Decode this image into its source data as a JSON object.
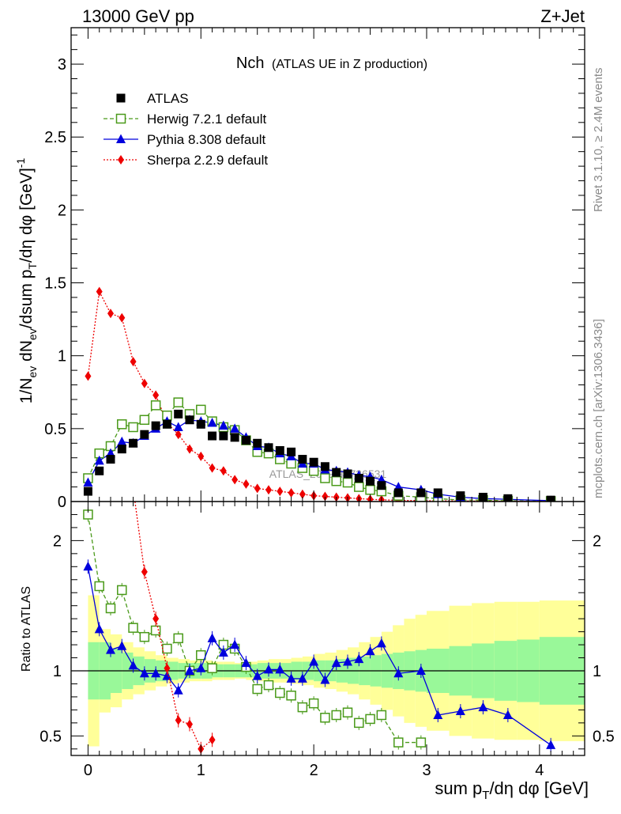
{
  "chart_data": {
    "type": "line",
    "header_left": "13000 GeV pp",
    "header_right": "Z+Jet",
    "title_main": "Nch",
    "title_sub": "(ATLAS UE in Z production)",
    "ylabel": "1/N_ev dN_ev/dsum p_T/dη dφ [GeV]^-1",
    "xlabel": "sum p_T/dη dφ [GeV]",
    "ratio_ylabel": "Ratio to ATLAS",
    "side_label_top": "Rivet 3.1.10, ≥ 2.4M events",
    "side_label_bottom": "mcplots.cern.ch [arXiv:1306.3436]",
    "watermark": "ATLAS_2019_I1736531",
    "xlim": [
      -0.15,
      4.4
    ],
    "ylim_main": [
      0,
      3.25
    ],
    "ylim_ratio": [
      0.35,
      2.3
    ],
    "xticks": [
      0,
      1,
      2,
      3,
      4
    ],
    "yticks_main": [
      0,
      0.5,
      1,
      1.5,
      2,
      2.5,
      3
    ],
    "yticks_ratio": [
      0.5,
      1,
      2
    ],
    "legend": [
      {
        "key": "atlas",
        "label": "ATLAS"
      },
      {
        "key": "herwig",
        "label": "Herwig 7.2.1 default"
      },
      {
        "key": "pythia",
        "label": "Pythia 8.308 default"
      },
      {
        "key": "sherpa",
        "label": "Sherpa 2.2.9 default"
      }
    ],
    "colors": {
      "atlas": "#000000",
      "herwig": "#4a9a1a",
      "pythia": "#0000dd",
      "sherpa": "#ee0000",
      "band_inner": "#99f899",
      "band_outer": "#ffff99"
    },
    "x": [
      0.0,
      0.1,
      0.2,
      0.3,
      0.4,
      0.5,
      0.6,
      0.7,
      0.8,
      0.9,
      1.0,
      1.1,
      1.2,
      1.3,
      1.4,
      1.5,
      1.6,
      1.7,
      1.8,
      1.9,
      2.0,
      2.1,
      2.2,
      2.3,
      2.4,
      2.5,
      2.6,
      2.75,
      2.95,
      3.1,
      3.3,
      3.5,
      3.72,
      4.1
    ],
    "series": [
      {
        "name": "ATLAS",
        "key": "atlas",
        "values": [
          0.07,
          0.21,
          0.29,
          0.36,
          0.4,
          0.46,
          0.52,
          0.53,
          0.6,
          0.56,
          0.53,
          0.45,
          0.45,
          0.44,
          0.42,
          0.4,
          0.37,
          0.35,
          0.34,
          0.29,
          0.27,
          0.24,
          0.2,
          0.19,
          0.16,
          0.14,
          0.11,
          0.06,
          0.06,
          0.06,
          0.04,
          0.03,
          0.02,
          0.01
        ]
      },
      {
        "name": "Herwig 7.2.1 default",
        "key": "herwig",
        "values": [
          0.16,
          0.33,
          0.38,
          0.53,
          0.51,
          0.56,
          0.66,
          0.59,
          0.68,
          0.6,
          0.63,
          0.55,
          0.51,
          0.49,
          0.42,
          0.34,
          0.33,
          0.29,
          0.26,
          0.23,
          0.21,
          0.16,
          0.14,
          0.13,
          0.1,
          0.08,
          0.07,
          0.04,
          0.03,
          0.02,
          0.01,
          0.01,
          0.005,
          0.003
        ]
      },
      {
        "name": "Pythia 8.308 default",
        "key": "pythia",
        "values": [
          0.13,
          0.28,
          0.33,
          0.41,
          0.4,
          0.45,
          0.5,
          0.55,
          0.51,
          0.56,
          0.55,
          0.54,
          0.52,
          0.5,
          0.44,
          0.38,
          0.37,
          0.33,
          0.31,
          0.26,
          0.26,
          0.22,
          0.21,
          0.2,
          0.18,
          0.17,
          0.15,
          0.1,
          0.08,
          0.05,
          0.03,
          0.02,
          0.015,
          0.006
        ]
      },
      {
        "name": "Sherpa 2.2.9 default",
        "key": "sherpa",
        "values": [
          0.86,
          1.44,
          1.29,
          1.26,
          0.96,
          0.81,
          0.73,
          0.54,
          0.46,
          0.36,
          0.31,
          0.23,
          0.21,
          0.15,
          0.12,
          0.09,
          0.08,
          0.07,
          0.06,
          0.05,
          0.04,
          0.035,
          0.03,
          0.025,
          0.02,
          0.015,
          0.012,
          0.008,
          0.006,
          0.005,
          0.004,
          0.003,
          0.002,
          0.001
        ]
      }
    ],
    "ratio": [
      {
        "key": "herwig",
        "name": "Herwig 7.2.1 default",
        "values": [
          2.2,
          1.65,
          1.48,
          1.62,
          1.33,
          1.26,
          1.31,
          1.17,
          1.25,
          1.0,
          1.12,
          1.02,
          1.2,
          1.17,
          1.03,
          0.86,
          0.89,
          0.83,
          0.81,
          0.72,
          0.75,
          0.64,
          0.66,
          0.68,
          0.6,
          0.63,
          0.66,
          0.45,
          0.45
        ]
      },
      {
        "key": "pythia",
        "name": "Pythia 8.308 default",
        "values": [
          1.8,
          1.32,
          1.16,
          1.19,
          1.04,
          0.98,
          0.98,
          0.96,
          0.85,
          1.0,
          1.02,
          1.25,
          1.14,
          1.2,
          1.06,
          0.96,
          1.01,
          1.01,
          0.94,
          0.94,
          1.07,
          0.93,
          1.06,
          1.07,
          1.09,
          1.15,
          1.21,
          0.98,
          1.0,
          0.66,
          0.69,
          0.72,
          0.66,
          0.43
        ]
      },
      {
        "key": "sherpa",
        "name": "Sherpa 2.2.9 default",
        "x_range": [
          0.0,
          1.1
        ],
        "values": [
          12.3,
          6.9,
          4.4,
          3.5,
          2.4,
          1.76,
          1.4,
          1.02,
          0.62,
          0.59,
          0.4,
          0.47
        ]
      }
    ],
    "uncertainty_bands": {
      "edges": [
        0.0,
        0.1,
        0.2,
        0.3,
        0.4,
        0.5,
        0.6,
        0.7,
        0.8,
        0.9,
        1.0,
        1.1,
        1.2,
        1.3,
        1.4,
        1.5,
        1.6,
        1.7,
        1.8,
        1.9,
        2.0,
        2.1,
        2.2,
        2.3,
        2.4,
        2.5,
        2.6,
        2.7,
        2.8,
        2.9,
        3.0,
        3.2,
        3.4,
        3.6,
        3.8,
        4.0,
        4.4
      ],
      "inner_half": [
        0.22,
        0.22,
        0.17,
        0.14,
        0.11,
        0.09,
        0.08,
        0.07,
        0.06,
        0.06,
        0.06,
        0.05,
        0.05,
        0.05,
        0.05,
        0.06,
        0.06,
        0.06,
        0.07,
        0.07,
        0.08,
        0.08,
        0.09,
        0.1,
        0.11,
        0.12,
        0.13,
        0.14,
        0.15,
        0.16,
        0.17,
        0.19,
        0.21,
        0.23,
        0.24,
        0.26
      ],
      "outer_half": [
        0.58,
        0.32,
        0.28,
        0.22,
        0.18,
        0.15,
        0.12,
        0.1,
        0.09,
        0.08,
        0.08,
        0.07,
        0.07,
        0.06,
        0.07,
        0.08,
        0.09,
        0.09,
        0.1,
        0.11,
        0.13,
        0.14,
        0.16,
        0.18,
        0.22,
        0.26,
        0.3,
        0.35,
        0.4,
        0.43,
        0.46,
        0.5,
        0.52,
        0.53,
        0.53,
        0.54
      ]
    }
  }
}
